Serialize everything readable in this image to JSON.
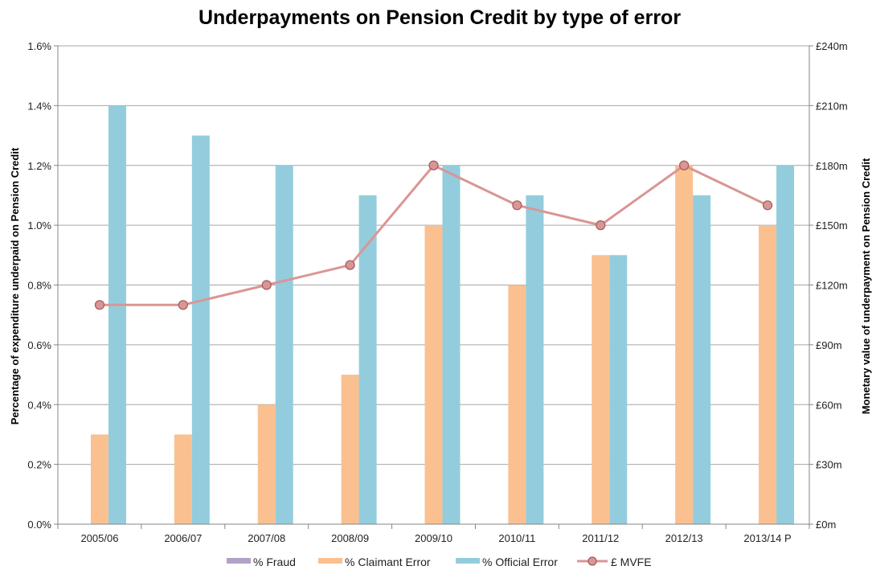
{
  "chart_data": {
    "type": "bar",
    "title": "Underpayments on Pension Credit by type of error",
    "ylabel": "Percentage of expenditure underpaid on Pension Credit",
    "y2label": "Monetary value of underpayment on Pension Credit",
    "categories": [
      "2005/06",
      "2006/07",
      "2007/08",
      "2008/09",
      "2009/10",
      "2010/11",
      "2011/12",
      "2012/13",
      "2013/14 P"
    ],
    "ylim": [
      0,
      1.6
    ],
    "y2lim": [
      0,
      240
    ],
    "yticks": [
      "0.0%",
      "0.2%",
      "0.4%",
      "0.6%",
      "0.8%",
      "1.0%",
      "1.2%",
      "1.4%",
      "1.6%"
    ],
    "y2ticks": [
      "£0m",
      "£30m",
      "£60m",
      "£90m",
      "£120m",
      "£150m",
      "£180m",
      "£210m",
      "£240m"
    ],
    "grid": true,
    "legend_position": "bottom",
    "series": [
      {
        "name": "% Fraud",
        "kind": "bar",
        "axis": "left",
        "color": "#b3a2c7",
        "values": [
          0,
          0,
          0,
          0,
          0,
          0,
          0,
          0,
          0
        ]
      },
      {
        "name": "% Claimant Error",
        "kind": "bar",
        "axis": "left",
        "color": "#fac090",
        "values": [
          0.3,
          0.3,
          0.4,
          0.5,
          1.0,
          0.8,
          0.9,
          1.2,
          1.0
        ]
      },
      {
        "name": "% Official Error",
        "kind": "bar",
        "axis": "left",
        "color": "#93cddd",
        "values": [
          1.4,
          1.3,
          1.2,
          1.1,
          1.2,
          1.1,
          0.9,
          1.1,
          1.2
        ]
      },
      {
        "name": "£ MVFE",
        "kind": "line",
        "axis": "right",
        "color": "#d99694",
        "values": [
          110,
          110,
          120,
          130,
          180,
          160,
          150,
          180,
          160
        ]
      }
    ]
  }
}
